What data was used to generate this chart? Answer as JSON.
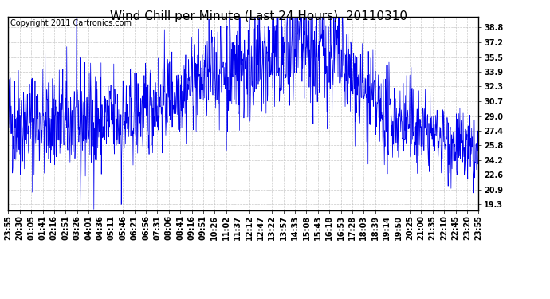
{
  "title": "Wind Chill per Minute (Last 24 Hours)  20110310",
  "copyright_text": "Copyright 2011 Cartronics.com",
  "line_color": "#0000ee",
  "background_color": "#ffffff",
  "plot_bg_color": "#ffffff",
  "grid_color": "#bbbbbb",
  "yticks": [
    19.3,
    20.9,
    22.6,
    24.2,
    25.8,
    27.4,
    29.0,
    30.7,
    32.3,
    33.9,
    35.5,
    37.2,
    38.8
  ],
  "ylim": [
    18.6,
    40.0
  ],
  "xtick_labels": [
    "23:55",
    "20:30",
    "01:05",
    "01:41",
    "02:16",
    "02:51",
    "03:26",
    "04:01",
    "04:36",
    "05:11",
    "05:46",
    "06:21",
    "06:56",
    "07:31",
    "08:06",
    "08:41",
    "09:16",
    "09:51",
    "10:26",
    "11:02",
    "11:37",
    "12:12",
    "12:47",
    "13:22",
    "13:57",
    "14:33",
    "15:08",
    "15:43",
    "16:18",
    "16:53",
    "17:28",
    "18:03",
    "18:39",
    "19:14",
    "19:50",
    "20:25",
    "21:00",
    "21:35",
    "22:10",
    "22:45",
    "23:20",
    "23:55"
  ],
  "title_fontsize": 11,
  "copyright_fontsize": 7,
  "tick_fontsize": 7
}
